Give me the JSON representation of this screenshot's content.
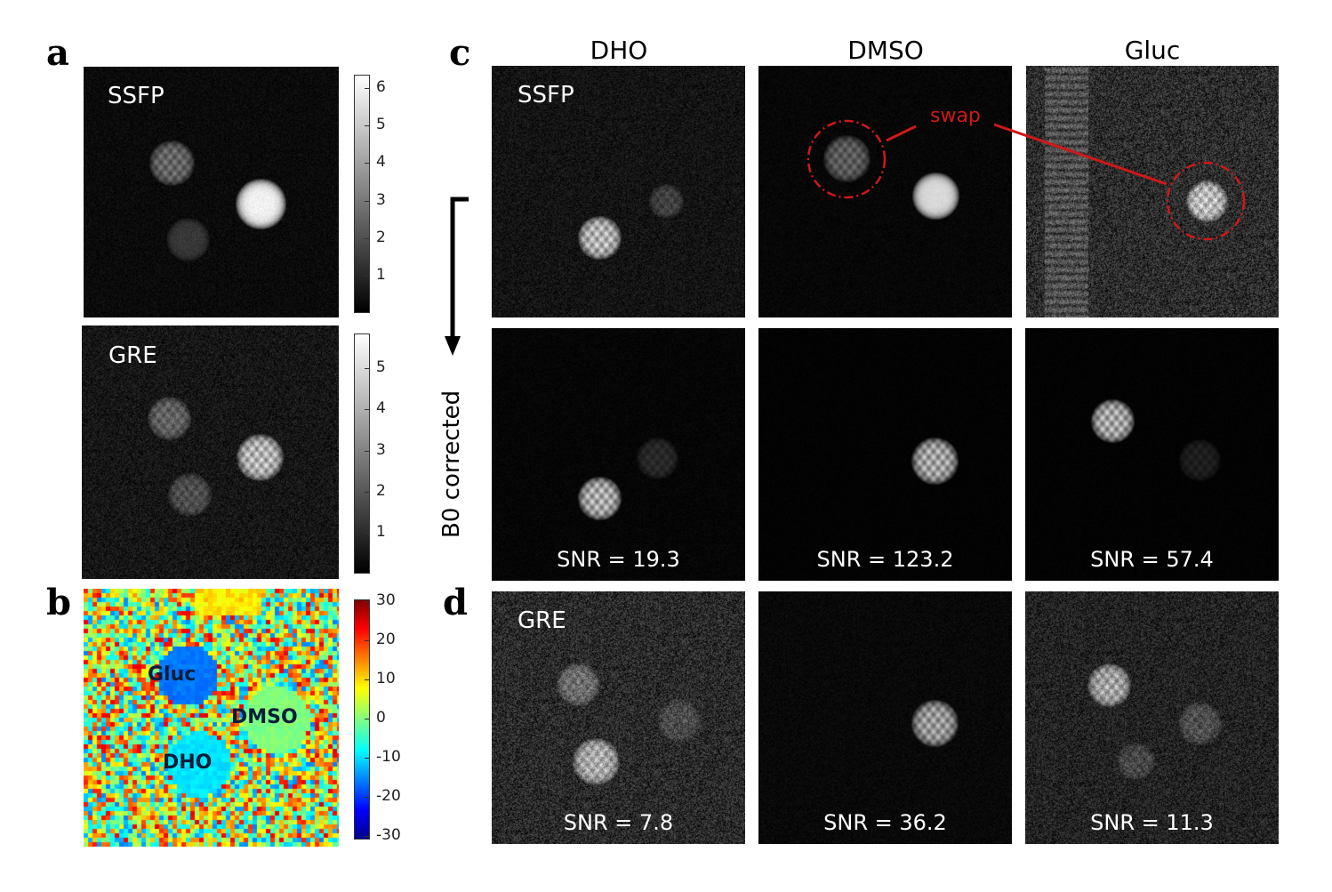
{
  "panel_letters": {
    "a": "a",
    "b": "b",
    "c": "c",
    "d": "d"
  },
  "panel_a": {
    "top_label": "SSFP",
    "bottom_label": "GRE",
    "top_colorbar_ticks": [
      "6",
      "5",
      "4",
      "3",
      "2",
      "1"
    ],
    "bottom_colorbar_ticks": [
      "5",
      "4",
      "3",
      "2",
      "1"
    ]
  },
  "panel_b": {
    "labels": {
      "gluc": "Gluc",
      "dmso": "DMSO",
      "dho": "DHO"
    },
    "colorbar_ticks": [
      "30",
      "20",
      "10",
      "0",
      "-10",
      "-20",
      "-30"
    ]
  },
  "panel_c": {
    "column_headers": [
      "DHO",
      "DMSO",
      "Gluc"
    ],
    "row1_label": "SSFP",
    "swap_label": "swap",
    "side_label": "B0 corrected",
    "snr": [
      "SNR = 19.3",
      "SNR = 123.2",
      "SNR = 57.4"
    ]
  },
  "panel_d": {
    "label": "GRE",
    "snr": [
      "SNR = 7.8",
      "SNR = 36.2",
      "SNR = 11.3"
    ]
  },
  "colors": {
    "swap_red": "#d01818",
    "colormap": "jet",
    "image_cmap": "gray"
  }
}
